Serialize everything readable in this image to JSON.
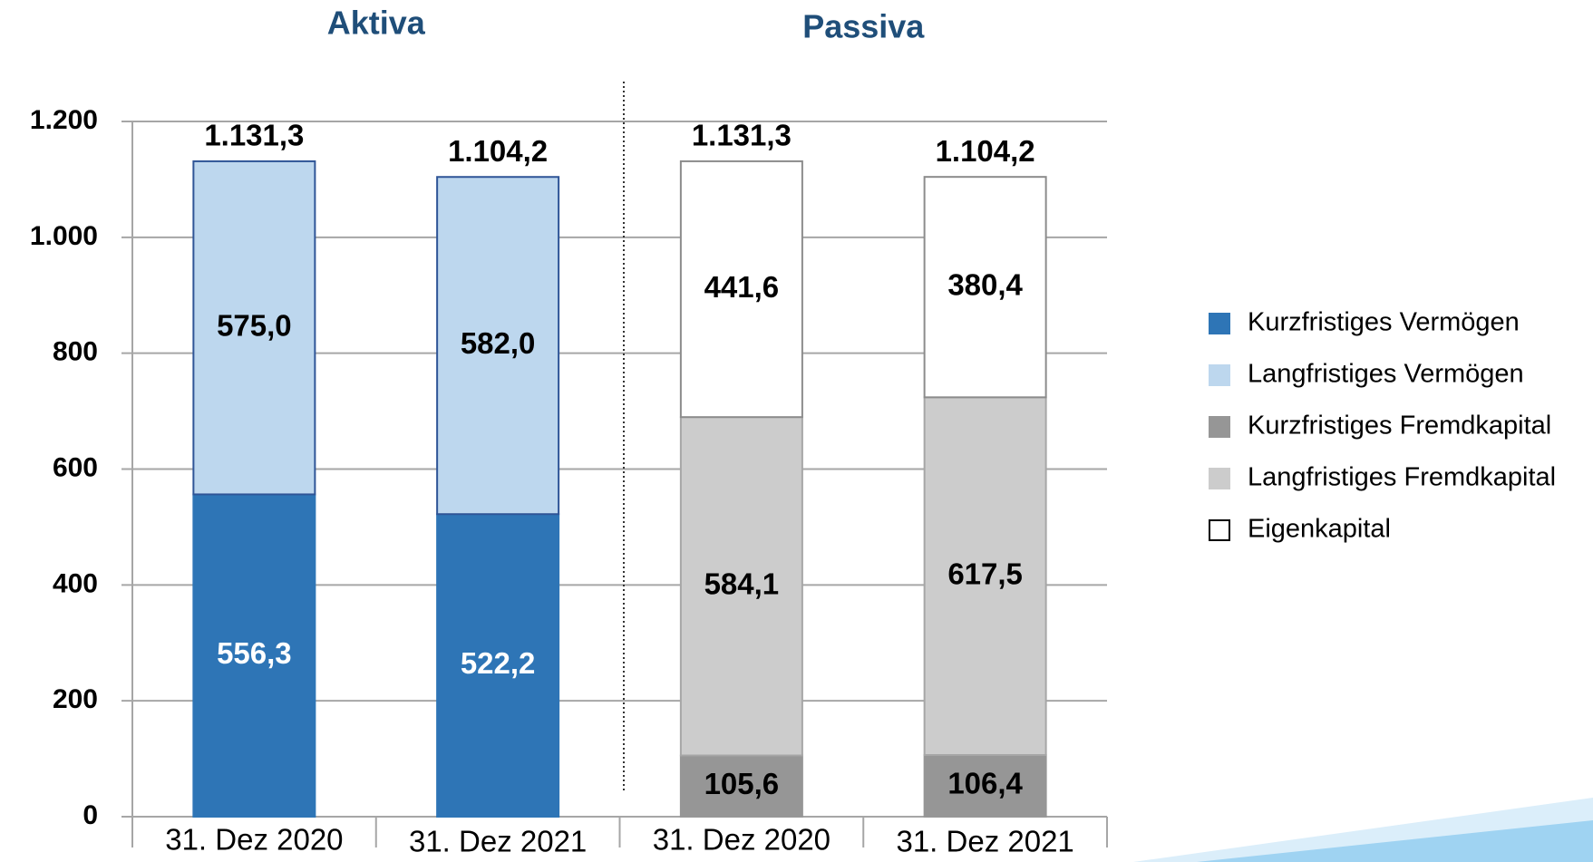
{
  "chart_data": {
    "type": "stacked_bar",
    "group_labels": [
      "Aktiva",
      "Passiva"
    ],
    "categories": [
      "31. Dez 2020",
      "31. Dez 2021",
      "31. Dez 2020",
      "31. Dez 2021"
    ],
    "series": [
      {
        "name": "Kurzfristiges Vermögen",
        "color": "#2e75b6",
        "edge": "#2e75b6",
        "label_color": "#ffffff",
        "values": [
          556.3,
          522.2,
          null,
          null
        ],
        "value_labels": [
          "556,3",
          "522,2",
          null,
          null
        ]
      },
      {
        "name": "Langfristiges Vermögen",
        "color": "#bdd7ee",
        "edge": "#2f5597",
        "label_color": "#000000",
        "values": [
          575.0,
          582.0,
          null,
          null
        ],
        "value_labels": [
          "575,0",
          "582,0",
          null,
          null
        ]
      },
      {
        "name": "Kurzfristiges Fremdkapital",
        "color": "#969696",
        "edge": "#969696",
        "label_color": "#000000",
        "values": [
          null,
          null,
          105.6,
          106.4
        ],
        "value_labels": [
          null,
          null,
          "105,6",
          "106,4"
        ]
      },
      {
        "name": "Langfristiges Fremdkapital",
        "color": "#cccccc",
        "edge": "#a6a6a6",
        "label_color": "#000000",
        "values": [
          null,
          null,
          584.1,
          617.5
        ],
        "value_labels": [
          null,
          null,
          "584,1",
          "617,5"
        ]
      },
      {
        "name": "Eigenkapital",
        "color": "#ffffff",
        "edge": "#8c8c8c",
        "label_color": "#000000",
        "values": [
          null,
          null,
          441.6,
          380.4
        ],
        "value_labels": [
          null,
          null,
          "441,6",
          "380,4"
        ]
      }
    ],
    "totals": [
      1131.3,
      1104.2,
      1131.3,
      1104.2
    ],
    "total_labels": [
      "1.131,3",
      "1.104,2",
      "1.131,3",
      "1.104,2"
    ],
    "ylim": [
      0,
      1200
    ],
    "yticks": [
      0,
      200,
      400,
      600,
      800,
      {
        "value": 1000,
        "label": "1.000"
      },
      {
        "value": 1200,
        "label": "1.200"
      }
    ],
    "grid": true,
    "legend": "right"
  }
}
